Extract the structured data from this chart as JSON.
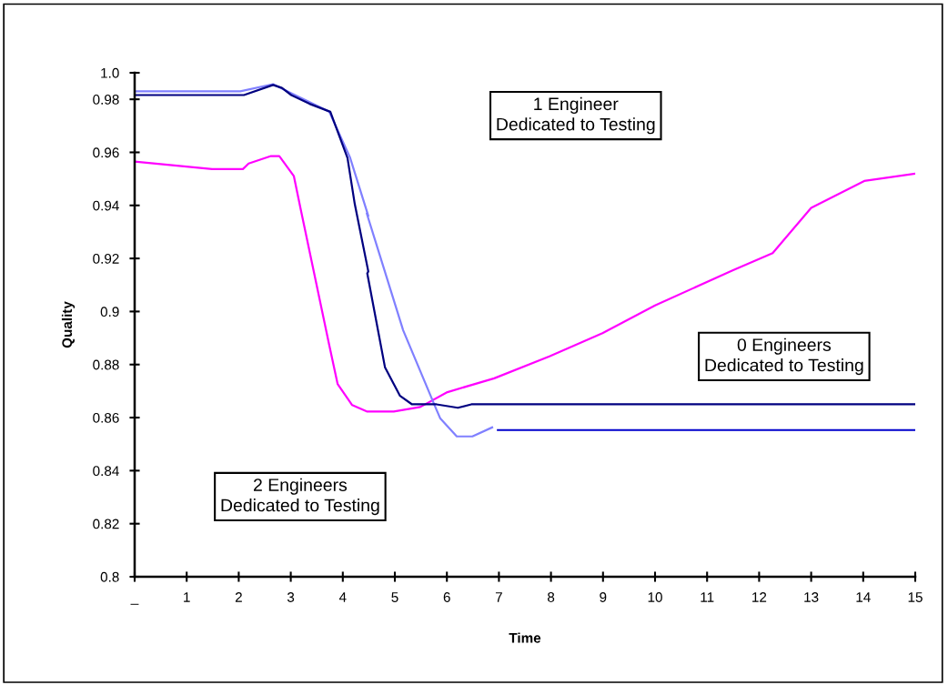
{
  "chart_data": {
    "type": "line",
    "xlabel": "Time",
    "ylabel": "Quality",
    "xlim": [
      0,
      15
    ],
    "ylim": [
      0.8,
      0.99
    ],
    "xticks": [
      {
        "value": 0,
        "label": "_"
      },
      1,
      2,
      3,
      4,
      5,
      6,
      7,
      8,
      9,
      10,
      11,
      12,
      13,
      14,
      15
    ],
    "yticks": [
      0.8,
      0.82,
      0.84,
      0.86,
      0.88,
      0.9,
      0.92,
      0.94,
      0.96,
      0.98,
      {
        "value": 0.99,
        "label": "1.0"
      }
    ],
    "marker": "none",
    "line_style": "solid",
    "series": [
      {
        "color": "#ff00ff",
        "x": [
          0,
          1.49,
          2.08,
          2.19,
          2.62,
          2.78,
          3.06,
          3.2,
          3.74,
          3.9,
          4.18,
          4.46,
          4.98,
          5.49,
          6.01,
          6.91,
          7.97,
          8.99,
          10.0,
          11.49,
          12.26,
          13.0,
          14.02,
          15
        ],
        "values": [
          0.9565,
          0.9537,
          0.9537,
          0.9558,
          0.9586,
          0.9586,
          0.951,
          0.9377,
          0.8873,
          0.8727,
          0.8647,
          0.8623,
          0.8623,
          0.864,
          0.8696,
          0.8748,
          0.8831,
          0.8918,
          0.9023,
          0.9155,
          0.922,
          0.9391,
          0.9492,
          0.952
        ]
      },
      {
        "color": "#8080ff",
        "x": [
          0,
          2.03,
          2.66,
          3.01,
          3.74,
          4.14,
          4.49,
          4.46,
          5.16,
          5.8,
          5.87,
          6.19,
          6.49,
          6.87
        ],
        "values": [
          0.983,
          0.983,
          0.9857,
          0.9823,
          0.9753,
          0.958,
          0.936,
          0.937,
          0.8929,
          0.863,
          0.8598,
          0.8529,
          0.8529,
          0.8563
        ]
      },
      {
        "color": "#000080",
        "x": [
          0,
          2.1,
          2.66,
          2.83,
          3.01,
          3.36,
          3.76,
          4.09,
          4.23,
          4.49,
          4.47,
          4.81,
          5.1,
          5.33,
          5.8,
          6.21,
          6.47,
          15
        ],
        "values": [
          0.9816,
          0.9816,
          0.9854,
          0.9843,
          0.9816,
          0.9783,
          0.9753,
          0.9579,
          0.9405,
          0.9151,
          0.9144,
          0.879,
          0.8682,
          0.865,
          0.865,
          0.8637,
          0.865,
          0.865
        ]
      },
      {
        "color": "#0000cc",
        "x": [
          6.98,
          15
        ],
        "values": [
          0.8553,
          0.8553
        ]
      }
    ],
    "annotations": [
      "1 Engineer\nDedicated to Testing",
      "0 Engineers\nDedicated to Testing",
      "2 Engineers\nDedicated to Testing"
    ]
  }
}
